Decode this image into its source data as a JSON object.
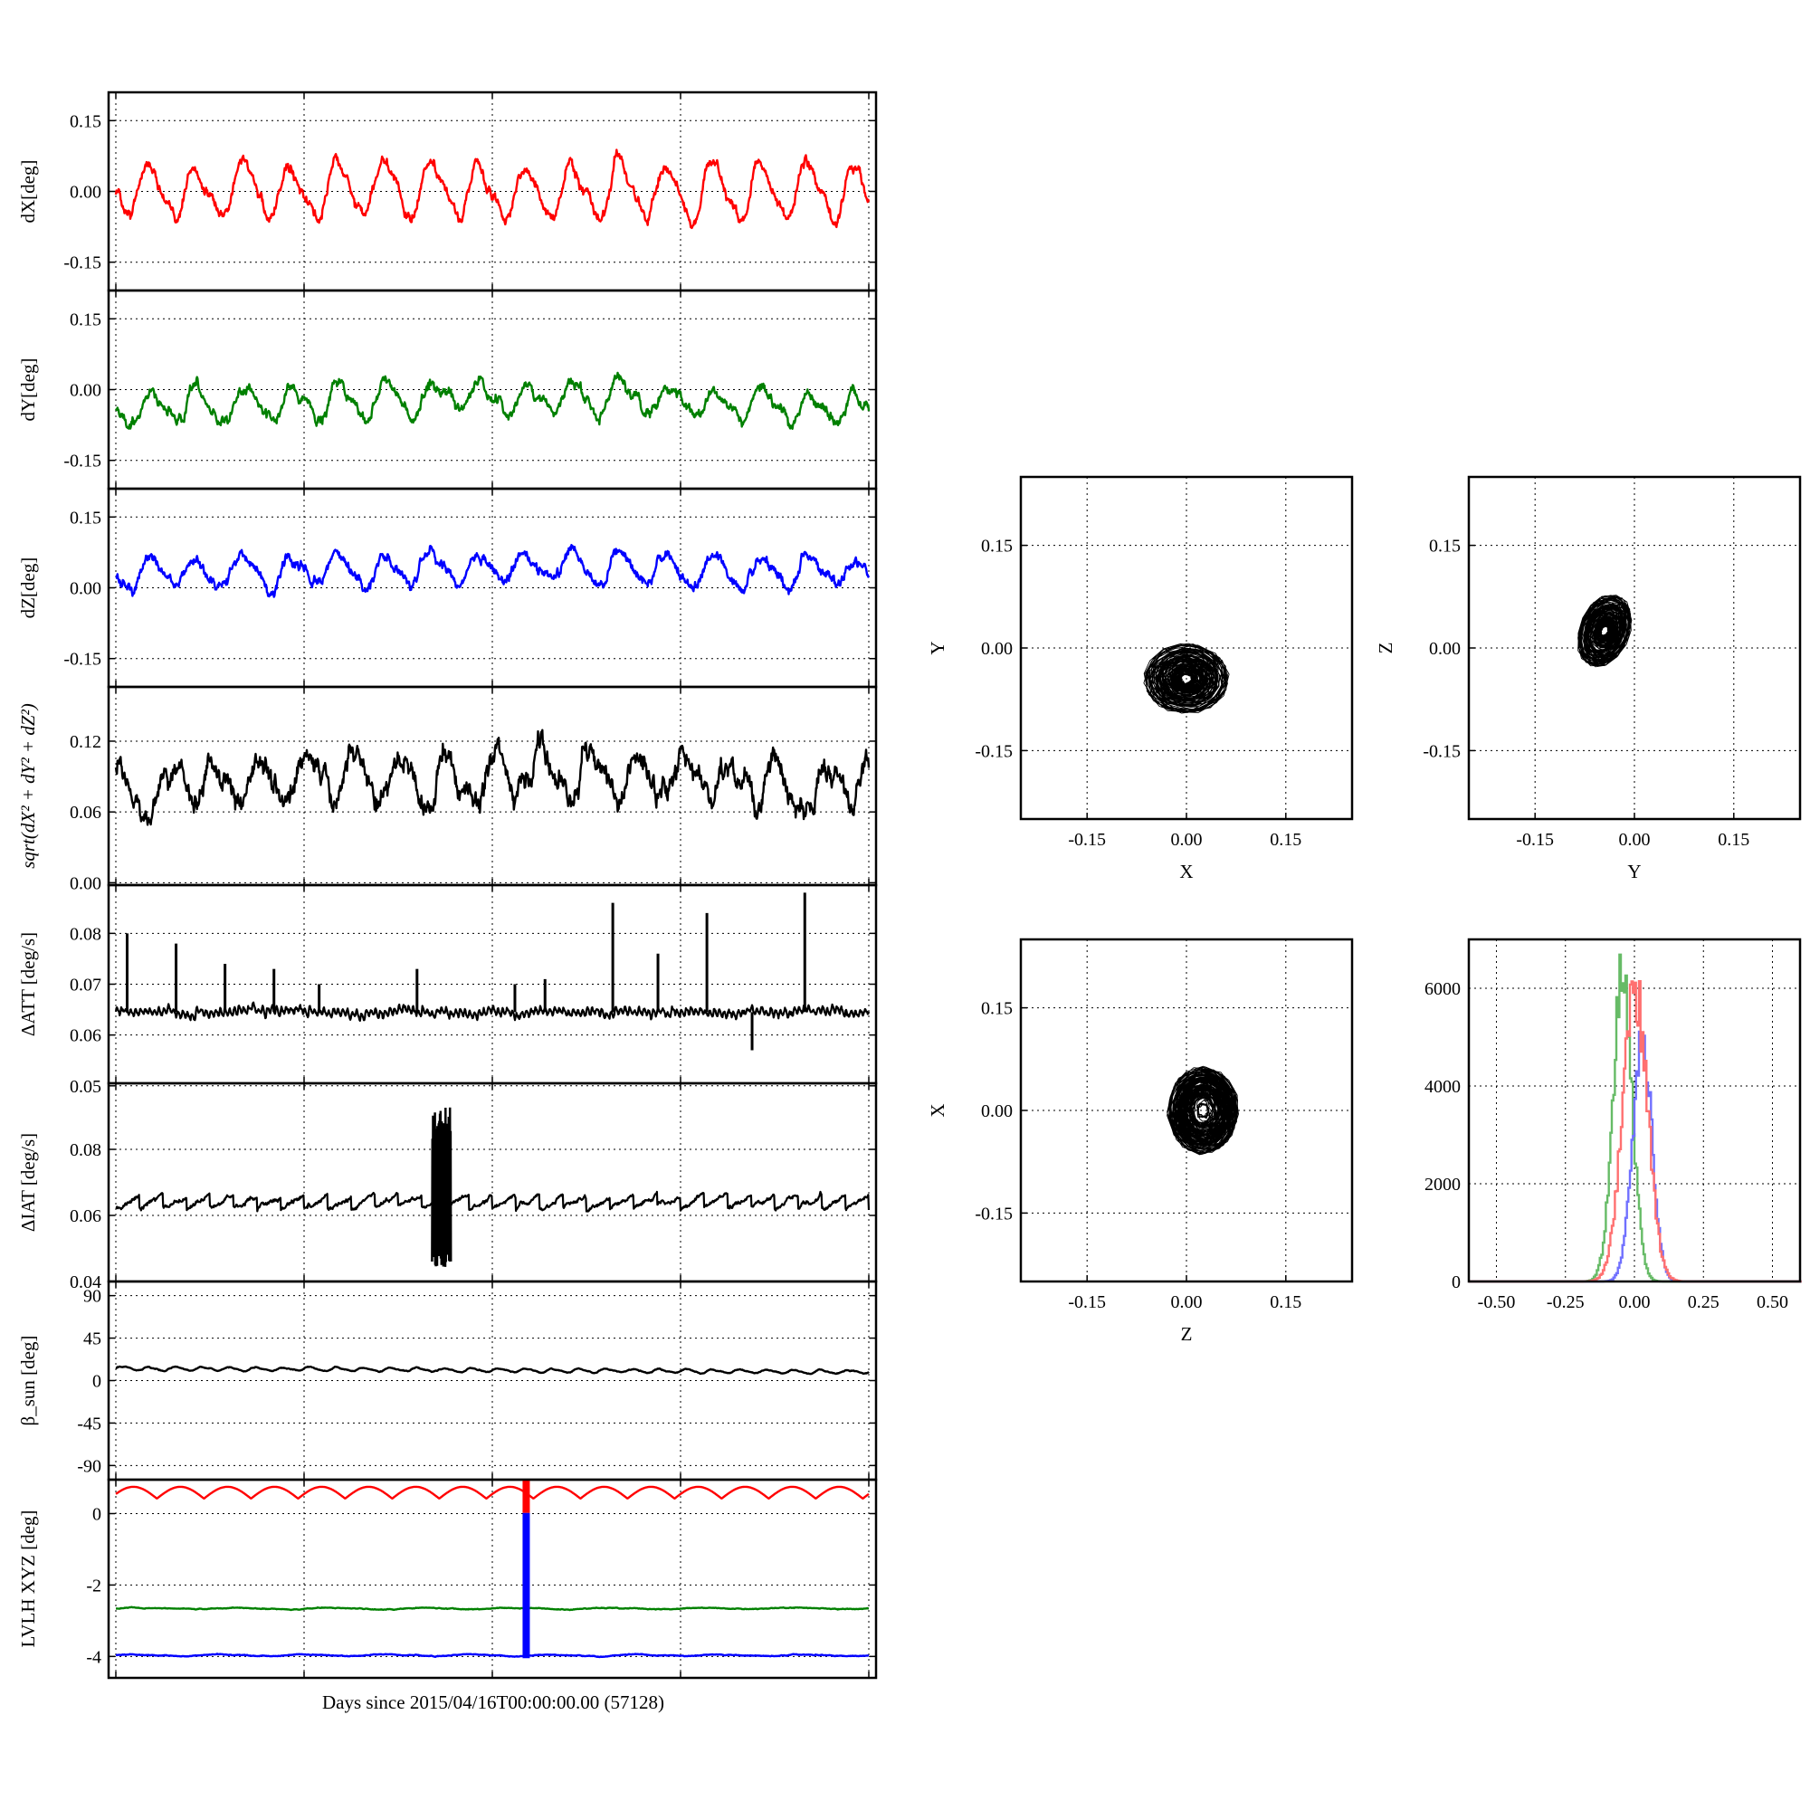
{
  "xlabel": "Days since 2015/04/16T00:00:00.00 (57128)",
  "colors": {
    "x": "#ff0000",
    "y": "#008000",
    "z": "#0000ff",
    "k": "#000000",
    "hist_x": "#ff7070",
    "hist_y": "#66bb66",
    "hist_z": "#7070ff"
  },
  "chart_data": [
    {
      "id": "dx",
      "type": "line",
      "ylabel": "dX[deg]",
      "ylim": [
        -0.21,
        0.21
      ],
      "yticks": [
        "0.15",
        "0.00",
        "-0.15"
      ],
      "ytick_values": [
        0.15,
        0.0,
        -0.15
      ],
      "series": [
        {
          "color": "x",
          "base": 0.0,
          "amp": 0.055,
          "cycles": 16,
          "noise": 0.007,
          "phase": 3.3
        }
      ]
    },
    {
      "id": "dy",
      "type": "line",
      "ylabel": "dY[deg]",
      "ylim": [
        -0.21,
        0.21
      ],
      "yticks": [
        "0.15",
        "0.00",
        "-0.15"
      ],
      "ytick_values": [
        0.15,
        0.0,
        -0.15
      ],
      "series": [
        {
          "color": "y",
          "base": -0.045,
          "amp": 0.032,
          "cycles": 16,
          "noise": 0.007,
          "phase": 3.0,
          "hump": 0.03
        }
      ]
    },
    {
      "id": "dz",
      "type": "line",
      "ylabel": "dZ[deg]",
      "ylim": [
        -0.21,
        0.21
      ],
      "yticks": [
        "0.15",
        "0.00",
        "-0.15"
      ],
      "ytick_values": [
        0.15,
        0.0,
        -0.15
      ],
      "series": [
        {
          "color": "z",
          "base": 0.025,
          "amp": 0.032,
          "cycles": 16,
          "noise": 0.007,
          "phase": 3.2,
          "hump": 0.02
        }
      ]
    },
    {
      "id": "dr",
      "type": "line",
      "ylabel": "sqrt(dX² + dY² + dZ²)",
      "ylim": [
        -0.002,
        0.166
      ],
      "yticks": [
        "0.12",
        "0.06",
        "0.00"
      ],
      "ytick_values": [
        0.12,
        0.06,
        0.0
      ],
      "series": [
        {
          "color": "k",
          "base": 0.08,
          "amp": 0.018,
          "cycles": 16,
          "noise": 0.006,
          "phase": 1.0,
          "hump": 0.01
        }
      ]
    },
    {
      "id": "datt",
      "type": "line",
      "ylabel": "ΔATT [deg/s]",
      "ylim": [
        0.0505,
        0.0895
      ],
      "yticks": [
        "0.08",
        "0.07",
        "0.06",
        "0.05"
      ],
      "ytick_values": [
        0.08,
        0.07,
        0.06,
        0.05
      ],
      "series": [
        {
          "color": "k",
          "base": 0.0645,
          "amp": 0.0006,
          "cycles": 160,
          "noise": 0.0003,
          "phase": 0
        }
      ],
      "spikes": [
        [
          0.015,
          0.08
        ],
        [
          0.08,
          0.078
        ],
        [
          0.145,
          0.074
        ],
        [
          0.21,
          0.073
        ],
        [
          0.27,
          0.07
        ],
        [
          0.4,
          0.073
        ],
        [
          0.53,
          0.07
        ],
        [
          0.57,
          0.071
        ],
        [
          0.66,
          0.086
        ],
        [
          0.72,
          0.076
        ],
        [
          0.785,
          0.084
        ],
        [
          0.845,
          0.057
        ],
        [
          0.915,
          0.088
        ]
      ]
    },
    {
      "id": "diat",
      "type": "line",
      "ylabel": "ΔIAT [deg/s]",
      "ylim": [
        0.04,
        0.1
      ],
      "yticks": [
        "0.08",
        "0.06",
        "0.04"
      ],
      "ytick_values": [
        0.08,
        0.06,
        0.04
      ],
      "series": [
        {
          "color": "k",
          "base": 0.064,
          "amp": 0.002,
          "cycles": 32,
          "noise": 0.0004,
          "phase": 0,
          "saw": true
        }
      ],
      "burst": {
        "x0": 0.42,
        "x1": 0.445,
        "lo": 0.044,
        "hi": 0.093
      }
    },
    {
      "id": "beta",
      "type": "line",
      "ylabel": "β_sun [deg]",
      "ylim": [
        -105,
        105
      ],
      "yticks": [
        "90",
        "45",
        "0",
        "-45",
        "-90"
      ],
      "ytick_values": [
        90,
        45,
        0,
        -45,
        -90
      ],
      "series": [
        {
          "color": "k",
          "base": 13,
          "amp": 1.8,
          "cycles": 28,
          "noise": 0.3,
          "phase": 0,
          "trend": -4
        }
      ]
    },
    {
      "id": "lvlh",
      "type": "line",
      "ylabel": "LVLH XYZ [deg]",
      "ylim": [
        -4.6,
        0.95
      ],
      "yticks": [
        "0",
        "-2",
        "-4"
      ],
      "ytick_values": [
        0,
        -2,
        -4
      ],
      "series": [
        {
          "color": "x",
          "base": 0.42,
          "amp": 0.33,
          "cycles": 16,
          "noise": 0.0,
          "phase": 0,
          "rectified": true
        },
        {
          "color": "y",
          "base": -2.66,
          "amp": 0.02,
          "cycles": 8,
          "noise": 0.006,
          "phase": 0
        },
        {
          "color": "z",
          "base": -3.97,
          "amp": 0.02,
          "cycles": 9,
          "noise": 0.006,
          "phase": 0
        }
      ],
      "bar": {
        "x": 0.545,
        "from": 0.95,
        "to": -4.05
      }
    },
    {
      "id": "xy",
      "type": "scatter",
      "xlabel": "X",
      "ylabel": "Y",
      "lim": [
        -0.25,
        0.25
      ],
      "ticks": [
        "-0.15",
        "0.00",
        "0.15"
      ],
      "tick_values": [
        -0.15,
        0.0,
        0.15
      ],
      "cloud": {
        "cx": 0.0,
        "cy": -0.045,
        "rx": 0.065,
        "ry": 0.052
      }
    },
    {
      "id": "yz",
      "type": "scatter",
      "xlabel": "Y",
      "ylabel": "Z",
      "lim": [
        -0.25,
        0.25
      ],
      "ticks": [
        "-0.15",
        "0.00",
        "0.15"
      ],
      "tick_values": [
        -0.15,
        0.0,
        0.15
      ],
      "cloud": {
        "cx": -0.045,
        "cy": 0.025,
        "rx": 0.05,
        "ry": 0.045,
        "tilt": 0.6
      }
    },
    {
      "id": "zx",
      "type": "scatter",
      "xlabel": "Z",
      "ylabel": "X",
      "lim": [
        -0.25,
        0.25
      ],
      "ticks": [
        "-0.15",
        "0.00",
        "0.15"
      ],
      "tick_values": [
        -0.15,
        0.0,
        0.15
      ],
      "cloud": {
        "cx": 0.025,
        "cy": 0.0,
        "rx": 0.055,
        "ry": 0.065
      }
    },
    {
      "id": "hist",
      "type": "histogram",
      "xlim": [
        -0.6,
        0.6
      ],
      "ylim": [
        0,
        7000
      ],
      "xticks": [
        "-0.50",
        "-0.25",
        "0.00",
        "0.25",
        "0.50"
      ],
      "xtick_values": [
        -0.5,
        -0.25,
        0.0,
        0.25,
        0.5
      ],
      "yticks": [
        "6000",
        "4000",
        "2000",
        "0"
      ],
      "ytick_values": [
        6000,
        4000,
        2000,
        0
      ],
      "series": [
        {
          "color": "hist_y",
          "center": -0.045,
          "sigma": 0.035,
          "peak": 6400
        },
        {
          "color": "hist_z",
          "center": 0.025,
          "sigma": 0.035,
          "peak": 5100
        },
        {
          "color": "hist_x",
          "center": 0.0,
          "sigma": 0.045,
          "peak": 6000
        }
      ]
    }
  ]
}
